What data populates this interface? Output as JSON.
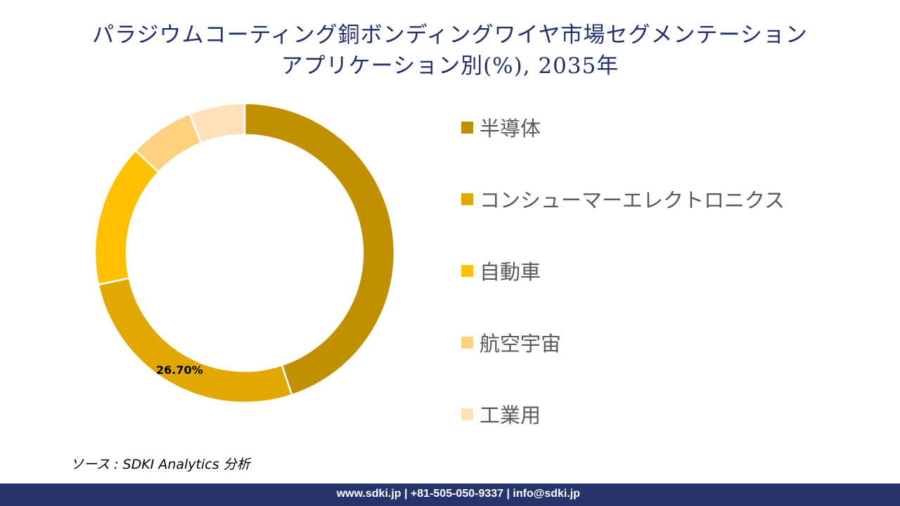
{
  "title_line1": "パラジウムコーティング銅ボンディングワイヤ市場セグメンテーション",
  "title_line2": "アプリケーション別(%), 2035年",
  "chart_data": {
    "type": "pie",
    "subtype": "donut",
    "title": "パラジウムコーティング銅ボンディングワイヤ市場セグメンテーション アプリケーション別(%), 2035年",
    "categories": [
      "半導体",
      "コンシューマーエレクトロニクス",
      "自動車",
      "航空宇宙",
      "工業用"
    ],
    "values": [
      44.9,
      26.7,
      15.4,
      7.0,
      6.0
    ],
    "colors": [
      "#c09000",
      "#e0a800",
      "#ffc000",
      "#ffd080",
      "#ffe0b8"
    ],
    "data_labels": [
      {
        "category": "コンシューマーエレクトロニクス",
        "text": "26.70%"
      }
    ],
    "legend_position": "right"
  },
  "source": "ソース : SDKI Analytics 分析",
  "footer": "www.sdki.jp | +81-505-050-9337 | info@sdki.jp"
}
